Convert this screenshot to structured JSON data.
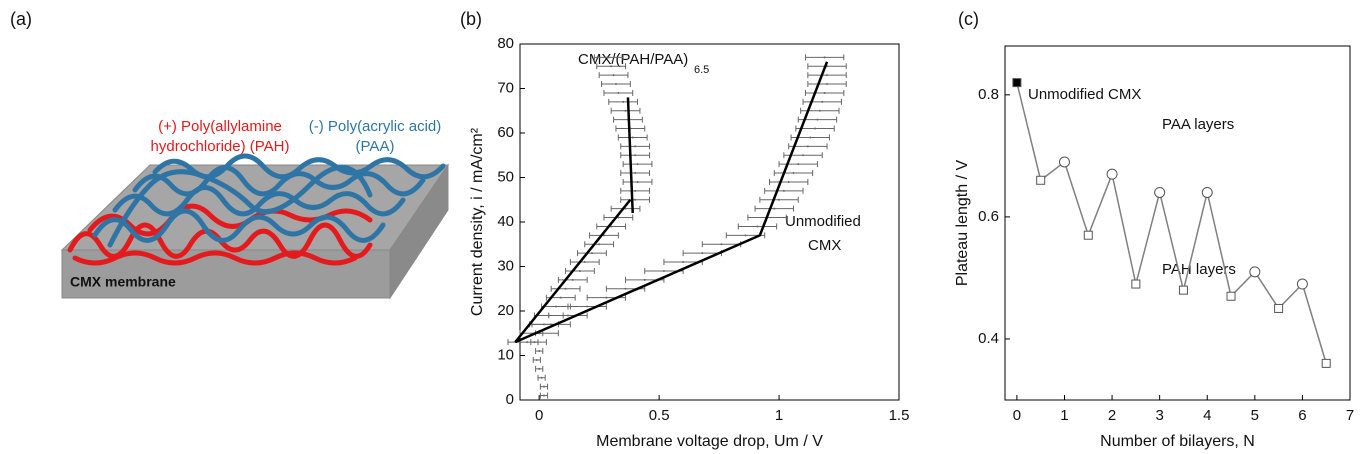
{
  "panel_a": {
    "label": "(a)",
    "pah_line1": "(+) Poly(allylamine",
    "pah_line2": "hydrochloride) (PAH)",
    "paa_line1": "(-) Poly(acrylic acid)",
    "paa_line2": "(PAA)",
    "membrane": "CMX membrane"
  },
  "chart_data": [
    {
      "type": "scatter",
      "label": "(b)",
      "x_label": "Membrane voltage drop, Um / V",
      "y_label": "Current density, i / mA/cm²",
      "xlim": [
        -0.08,
        1.5
      ],
      "xticks": [
        0.0,
        0.5,
        1.0,
        1.5
      ],
      "ylim": [
        0,
        80
      ],
      "yticks": [
        0,
        10,
        20,
        30,
        40,
        50,
        60,
        70,
        80
      ],
      "annotations": [
        "CMX/(PAH/PAA)",
        "6.5",
        "Unmodified",
        "CMX"
      ],
      "series": [
        {
          "color": "#666666",
          "values": [
            1,
            3,
            5,
            7,
            9,
            11,
            13,
            15,
            17,
            19,
            21,
            23,
            25,
            27,
            29,
            31,
            33,
            35,
            37,
            39,
            41,
            43,
            45,
            47,
            49,
            51,
            53,
            55,
            57,
            59,
            61,
            63,
            65,
            67,
            69,
            71,
            73,
            75,
            77
          ],
          "x": [
            0.02,
            0.02,
            0.01,
            0.0,
            -0.01,
            0.0,
            -0.02,
            0.0,
            0.02,
            0.04,
            0.07,
            0.09,
            0.11,
            0.14,
            0.17,
            0.19,
            0.22,
            0.25,
            0.27,
            0.3,
            0.33,
            0.36,
            0.4,
            0.4,
            0.41,
            0.4,
            0.41,
            0.4,
            0.4,
            0.39,
            0.38,
            0.37,
            0.36,
            0.35,
            0.33,
            0.32,
            0.31,
            0.3,
            0.29
          ],
          "xerr": [
            0.015,
            0.015,
            0.015,
            0.015,
            0.015,
            0.015,
            0.015,
            0.015,
            0.06,
            0.06,
            0.06,
            0.06,
            0.06,
            0.06,
            0.06,
            0.06,
            0.06,
            0.06,
            0.06,
            0.06,
            0.06,
            0.06,
            0.06,
            0.06,
            0.06,
            0.06,
            0.06,
            0.06,
            0.06,
            0.06,
            0.06,
            0.06,
            0.06,
            0.06,
            0.06,
            0.06,
            0.06,
            0.06,
            0.06
          ]
        },
        {
          "color": "#666666",
          "values": [
            13,
            15,
            17,
            19,
            21,
            23,
            25,
            27,
            29,
            31,
            33,
            35,
            37,
            39,
            41,
            43,
            45,
            47,
            49,
            51,
            53,
            55,
            57,
            59,
            61,
            63,
            65,
            67,
            69,
            71,
            73,
            75,
            77
          ],
          "x": [
            -0.05,
            0.0,
            0.05,
            0.12,
            0.2,
            0.28,
            0.36,
            0.44,
            0.52,
            0.6,
            0.68,
            0.76,
            0.86,
            0.91,
            0.95,
            0.98,
            1.0,
            1.02,
            1.04,
            1.06,
            1.08,
            1.1,
            1.12,
            1.13,
            1.15,
            1.16,
            1.17,
            1.18,
            1.19,
            1.2,
            1.2,
            1.2,
            1.19
          ],
          "xerr": [
            0.08,
            0.08,
            0.08,
            0.08,
            0.08,
            0.08,
            0.08,
            0.08,
            0.08,
            0.08,
            0.08,
            0.08,
            0.08,
            0.08,
            0.08,
            0.08,
            0.08,
            0.08,
            0.08,
            0.08,
            0.08,
            0.08,
            0.08,
            0.08,
            0.08,
            0.08,
            0.08,
            0.08,
            0.08,
            0.08,
            0.08,
            0.08,
            0.08
          ]
        }
      ],
      "fit_lines": [
        {
          "color": "#000000",
          "x": [
            -0.1,
            0.38
          ],
          "values": [
            13,
            45
          ]
        },
        {
          "color": "#000000",
          "x": [
            0.39,
            0.37
          ],
          "values": [
            42,
            68
          ]
        },
        {
          "color": "#000000",
          "x": [
            -0.1,
            0.92,
            1.2
          ],
          "values": [
            13,
            37,
            76
          ]
        }
      ]
    },
    {
      "type": "line",
      "label": "(c)",
      "x_label": "Number of bilayers, N",
      "y_label": "Plateau length / V",
      "xlim": [
        -0.25,
        7
      ],
      "xticks": [
        0,
        1,
        2,
        3,
        4,
        5,
        6,
        7
      ],
      "ylim": [
        0.3,
        0.88
      ],
      "yticks": [
        0.4,
        0.6,
        0.8
      ],
      "annotations": [
        "Unmodified CMX",
        "PAA layers",
        "PAH layers"
      ],
      "color": "#7f7f7f",
      "x": [
        0,
        0.5,
        1,
        1.5,
        2,
        2.5,
        3,
        3.5,
        4,
        4.5,
        5,
        5.5,
        6,
        6.5
      ],
      "values": [
        0.82,
        0.66,
        0.69,
        0.57,
        0.67,
        0.49,
        0.64,
        0.48,
        0.64,
        0.47,
        0.51,
        0.45,
        0.49,
        0.36
      ],
      "markers": [
        "filled-square",
        "square",
        "circle",
        "square",
        "circle",
        "square",
        "circle",
        "square",
        "circle",
        "square",
        "circle",
        "square",
        "circle",
        "square"
      ]
    }
  ]
}
